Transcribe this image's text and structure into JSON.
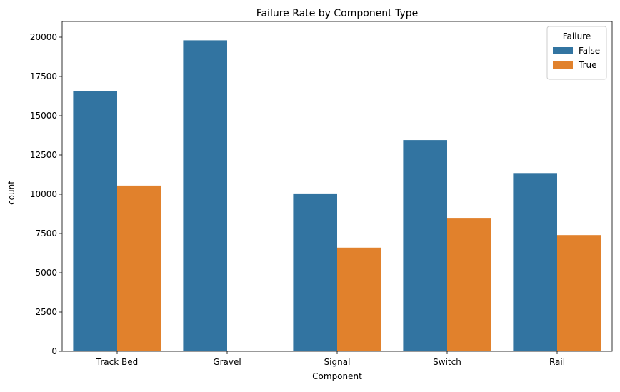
{
  "chart_data": {
    "type": "bar",
    "title": "Failure Rate by Component Type",
    "xlabel": "Component",
    "ylabel": "count",
    "categories": [
      "Track Bed",
      "Gravel",
      "Signal",
      "Switch",
      "Rail"
    ],
    "series": [
      {
        "name": "False",
        "color": "#3274a1",
        "values": [
          16550,
          19800,
          10050,
          13450,
          11350
        ]
      },
      {
        "name": "True",
        "color": "#e1812c",
        "values": [
          10550,
          0,
          6600,
          8450,
          7400
        ]
      }
    ],
    "ylim": [
      0,
      21000
    ],
    "yticks": [
      0,
      2500,
      5000,
      7500,
      10000,
      12500,
      15000,
      17500,
      20000
    ],
    "ytick_labels": [
      "0",
      "2500",
      "5000",
      "7500",
      "10000",
      "12500",
      "15000",
      "17500",
      "20000"
    ],
    "legend": {
      "title": "Failure",
      "position": "top-right"
    },
    "grid": false
  }
}
